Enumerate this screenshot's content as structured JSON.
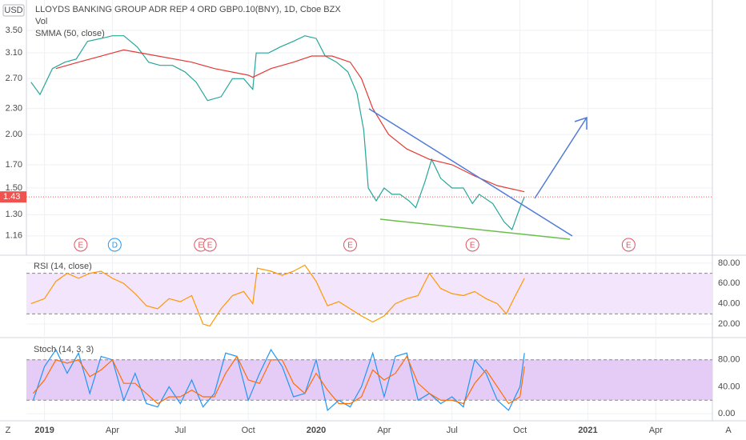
{
  "chart_data": [
    {
      "type": "line",
      "title": "LLOYDS BANKING GROUP ADR REP 4 ORD GBP0.10(BNY), 1D, Cboe BZX",
      "indicators": [
        "Vol",
        "SMMA (50, close)"
      ],
      "currency": "USD",
      "log": true,
      "grid": true,
      "xlim": [
        -0.8,
        29.5
      ],
      "xticks": [
        {
          "value": 0,
          "label": "2019"
        },
        {
          "value": 3,
          "label": "Apr"
        },
        {
          "value": 6,
          "label": "Jul"
        },
        {
          "value": 9,
          "label": "Oct"
        },
        {
          "value": 12,
          "label": "2020"
        },
        {
          "value": 15,
          "label": "Apr"
        },
        {
          "value": 18,
          "label": "Jul"
        },
        {
          "value": 21,
          "label": "Oct"
        },
        {
          "value": 24,
          "label": "2021"
        },
        {
          "value": 27,
          "label": "Apr"
        }
      ],
      "ylim": [
        1.05,
        4.12
      ],
      "yticks": [
        {
          "value": 3.5,
          "label": "3.50"
        },
        {
          "value": 3.1,
          "label": "3.10"
        },
        {
          "value": 2.7,
          "label": "2.70"
        },
        {
          "value": 2.3,
          "label": "2.30"
        },
        {
          "value": 2,
          "label": "2.00"
        },
        {
          "value": 1.7,
          "label": "1.70"
        },
        {
          "value": 1.5,
          "label": "1.50"
        },
        {
          "value": 1.3,
          "label": "1.30"
        },
        {
          "value": 1.16,
          "label": "1.16"
        }
      ],
      "last_value": 1.43,
      "series": [
        {
          "color": "#26a69a",
          "x": [
            -0.6,
            -0.2,
            0.35,
            0.9,
            1.4,
            1.9,
            2.5,
            3,
            3.5,
            4.1,
            4.6,
            5.1,
            5.65,
            6.2,
            6.7,
            7.2,
            7.8,
            8.3,
            8.8,
            9.2,
            9.35,
            9.9,
            10.4,
            11,
            11.5,
            12,
            12.4,
            12.9,
            13.4,
            13.8,
            14.1,
            14.3,
            14.65,
            15,
            15.35,
            15.7,
            16.1,
            16.4,
            16.8,
            17.1,
            17.5,
            18,
            18.5,
            18.9,
            19.2,
            19.8,
            20.3,
            20.65,
            21,
            21.2
          ],
          "values": [
            2.65,
            2.48,
            2.85,
            2.95,
            3.0,
            3.3,
            3.35,
            3.4,
            3.4,
            3.2,
            2.95,
            2.9,
            2.9,
            2.8,
            2.65,
            2.4,
            2.45,
            2.7,
            2.7,
            2.55,
            3.1,
            3.1,
            3.2,
            3.3,
            3.4,
            3.35,
            3.05,
            2.95,
            2.8,
            2.5,
            2.05,
            1.5,
            1.4,
            1.5,
            1.45,
            1.45,
            1.4,
            1.35,
            1.55,
            1.75,
            1.58,
            1.5,
            1.5,
            1.38,
            1.45,
            1.38,
            1.25,
            1.2,
            1.35,
            1.43
          ]
        },
        {
          "name": "SMMA (50, close)",
          "color": "#e53935",
          "x": [
            0.5,
            1.5,
            3,
            3.5,
            5,
            6.5,
            7.5,
            9,
            9.2,
            10,
            11,
            11.8,
            12.7,
            13.5,
            14,
            14.5,
            15.2,
            16,
            17,
            18,
            19,
            20,
            21.2
          ],
          "values": [
            2.85,
            2.95,
            3.1,
            3.15,
            3.05,
            2.95,
            2.85,
            2.75,
            2.72,
            2.85,
            2.95,
            3.05,
            3.05,
            2.95,
            2.7,
            2.3,
            2.0,
            1.85,
            1.75,
            1.7,
            1.6,
            1.52,
            1.47
          ]
        }
      ],
      "events": [
        {
          "x": 1.6,
          "label": "E"
        },
        {
          "x": 3.1,
          "label": "D"
        },
        {
          "x": 6.9,
          "label": "E"
        },
        {
          "x": 7.3,
          "label": "E"
        },
        {
          "x": 13.5,
          "label": "E"
        },
        {
          "x": 18.9,
          "label": "E"
        },
        {
          "x": 25.8,
          "label": "E"
        }
      ]
    },
    {
      "type": "line",
      "title": "RSI (14, close)",
      "ylim": [
        8.2,
        87
      ],
      "band": [
        30,
        70
      ],
      "yticks": [
        {
          "value": 80,
          "label": "80.00"
        },
        {
          "value": 60,
          "label": "60.00"
        },
        {
          "value": 40,
          "label": "40.00"
        },
        {
          "value": 20,
          "label": "20.00"
        }
      ],
      "series": [
        {
          "color": "#ff9800",
          "x": [
            -0.6,
            0,
            0.5,
            1,
            1.5,
            2,
            2.5,
            3,
            3.5,
            4,
            4.5,
            5,
            5.5,
            6,
            6.5,
            7,
            7.3,
            7.8,
            8.3,
            8.8,
            9.2,
            9.4,
            10,
            10.5,
            11,
            11.5,
            12,
            12.5,
            13,
            13.5,
            14,
            14.5,
            15,
            15.5,
            16,
            16.5,
            17,
            17.5,
            18,
            18.5,
            19,
            19.5,
            20,
            20.4,
            20.8,
            21.2
          ],
          "values": [
            40,
            45,
            62,
            70,
            65,
            70,
            72,
            65,
            60,
            50,
            38,
            35,
            45,
            42,
            48,
            20,
            18,
            35,
            48,
            52,
            40,
            75,
            72,
            68,
            72,
            78,
            62,
            38,
            42,
            35,
            28,
            22,
            28,
            40,
            45,
            48,
            70,
            55,
            50,
            48,
            52,
            45,
            40,
            30,
            48,
            65
          ]
        }
      ]
    },
    {
      "type": "line",
      "title": "Stoch (14, 3, 3)",
      "ylim": [
        -9.4,
        110.6
      ],
      "band": [
        20,
        80
      ],
      "yticks": [
        {
          "value": 80,
          "label": "80.00"
        },
        {
          "value": 40,
          "label": "40.00"
        },
        {
          "value": 0,
          "label": "0.00"
        }
      ],
      "series": [
        {
          "color": "#2196f3",
          "x": [
            -0.5,
            0,
            0.5,
            1,
            1.5,
            2,
            2.5,
            3,
            3.5,
            4,
            4.5,
            5,
            5.5,
            6,
            6.5,
            7,
            7.5,
            8,
            8.5,
            9,
            9.5,
            10,
            10.5,
            11,
            11.5,
            12,
            12.5,
            13,
            13.5,
            14,
            14.5,
            15,
            15.5,
            16,
            16.5,
            17,
            17.5,
            18,
            18.5,
            19,
            19.5,
            20,
            20.5,
            21,
            21.2
          ],
          "values": [
            20,
            70,
            95,
            60,
            90,
            30,
            85,
            80,
            20,
            60,
            15,
            10,
            40,
            15,
            50,
            10,
            30,
            90,
            85,
            20,
            60,
            95,
            70,
            25,
            30,
            80,
            5,
            20,
            10,
            40,
            90,
            25,
            85,
            90,
            20,
            30,
            15,
            25,
            10,
            80,
            60,
            20,
            5,
            40,
            90
          ]
        },
        {
          "color": "#ff6d00",
          "x": [
            -0.5,
            0,
            0.5,
            1,
            1.5,
            2,
            2.5,
            3,
            3.5,
            4,
            4.5,
            5,
            5.5,
            6,
            6.5,
            7,
            7.5,
            8,
            8.5,
            9,
            9.5,
            10,
            10.5,
            11,
            11.5,
            12,
            12.5,
            13,
            13.5,
            14,
            14.5,
            15,
            15.5,
            16,
            16.5,
            17,
            17.5,
            18,
            18.5,
            19,
            19.5,
            20,
            20.5,
            21,
            21.2
          ],
          "values": [
            30,
            50,
            80,
            75,
            80,
            55,
            65,
            80,
            45,
            45,
            30,
            15,
            25,
            25,
            35,
            25,
            25,
            60,
            85,
            50,
            45,
            80,
            80,
            45,
            30,
            60,
            35,
            15,
            15,
            25,
            65,
            50,
            60,
            85,
            45,
            30,
            20,
            20,
            15,
            45,
            65,
            40,
            15,
            25,
            70
          ]
        }
      ]
    }
  ],
  "ui": {
    "left_button": "Z",
    "right_button": "A"
  }
}
